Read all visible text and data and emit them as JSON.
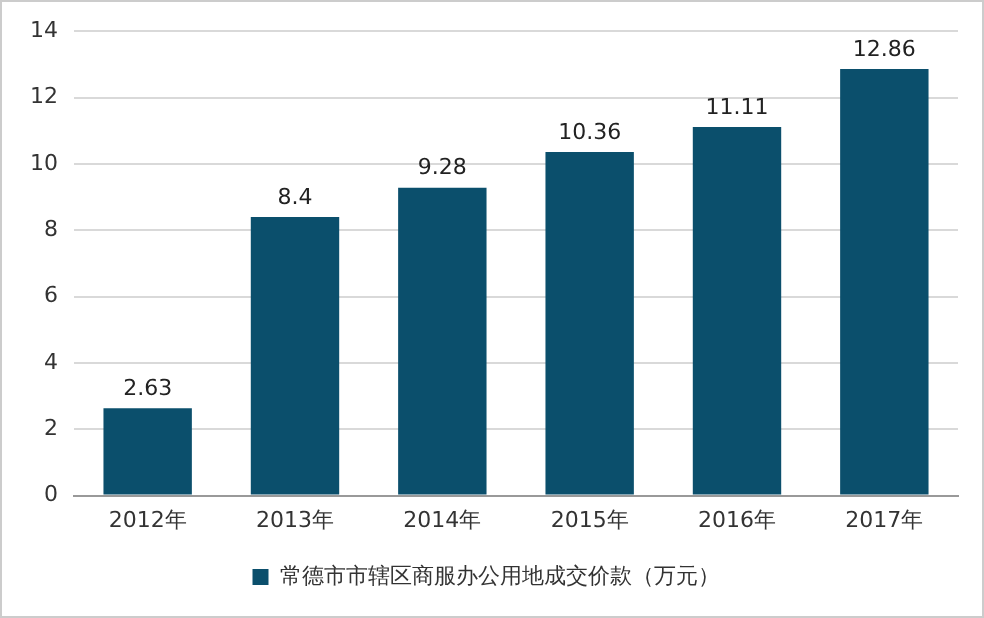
{
  "chart_data": {
    "type": "bar",
    "categories": [
      "2012年",
      "2013年",
      "2014年",
      "2015年",
      "2016年",
      "2017年"
    ],
    "series": [
      {
        "name": "常德市市辖区商服办公用地成交价款（万元）",
        "color": "#0b4f6c",
        "values": [
          2.63,
          8.4,
          9.28,
          10.36,
          11.11,
          12.86
        ]
      }
    ],
    "ylim": [
      0,
      14
    ],
    "yticks": [
      0,
      2,
      4,
      6,
      8,
      10,
      12,
      14
    ],
    "grid": "y",
    "legend": "bottom",
    "data_labels": true
  }
}
